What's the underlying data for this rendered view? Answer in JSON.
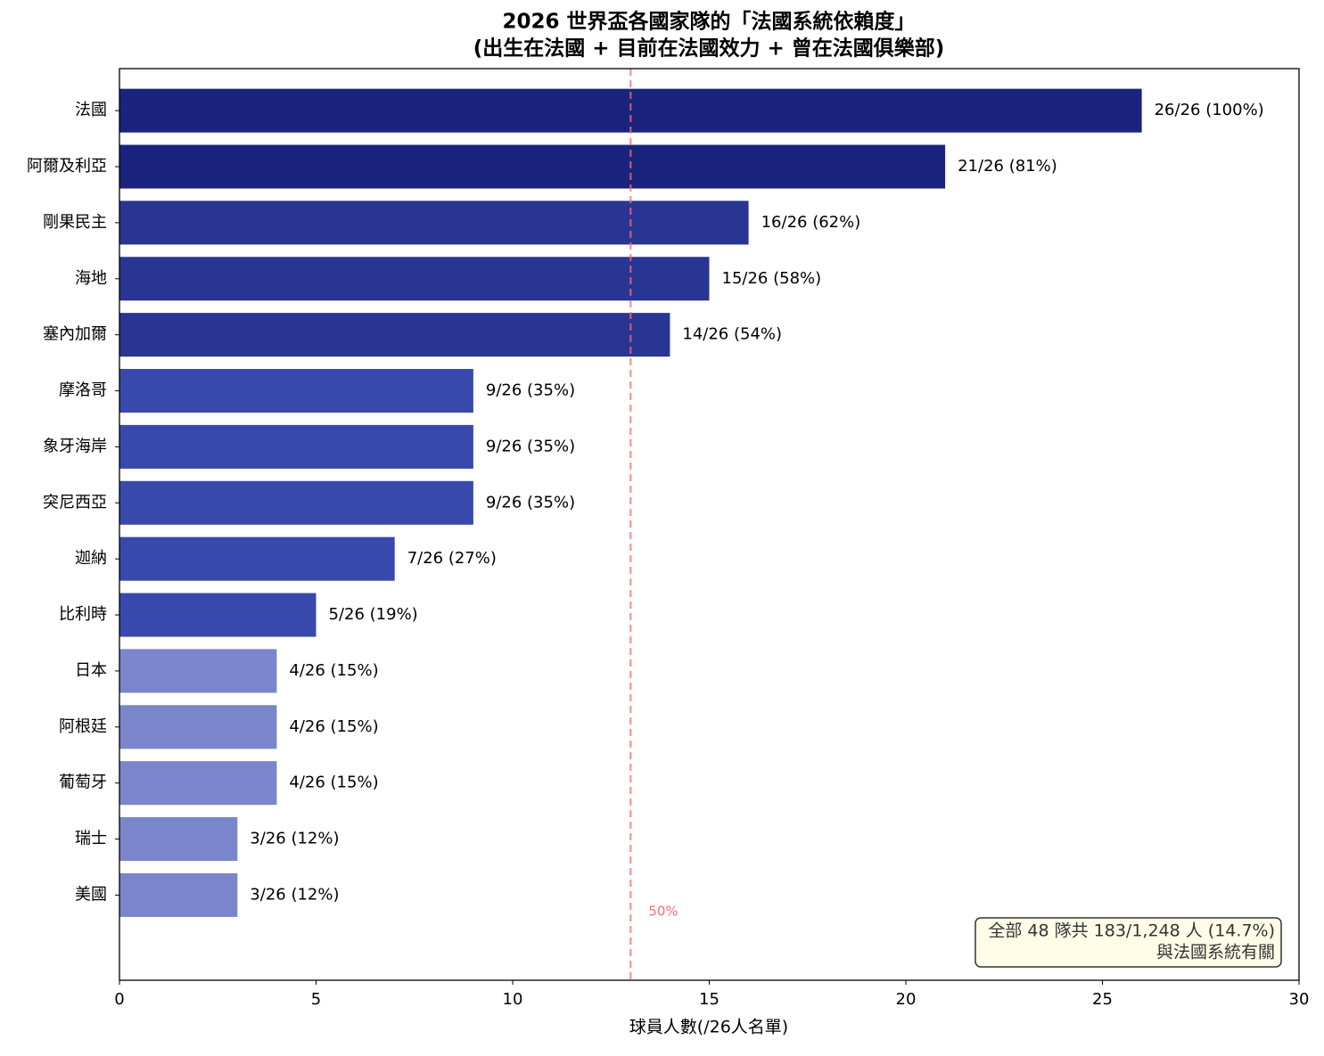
{
  "chart_data": {
    "type": "barh",
    "title": [
      "2026 世界盃各國家隊的「法國系統依賴度」",
      "(出生在法國 + 目前在法國效力 + 曾在法國俱樂部)"
    ],
    "x_label": "球員人數(/26人名單)",
    "categories": [
      "法國",
      "阿爾及利亞",
      "剛果民主",
      "海地",
      "塞內加爾",
      "摩洛哥",
      "象牙海岸",
      "突尼西亞",
      "迦納",
      "比利時",
      "日本",
      "阿根廷",
      "葡萄牙",
      "瑞士",
      "美國"
    ],
    "values": [
      26,
      21,
      16,
      15,
      14,
      9,
      9,
      9,
      7,
      5,
      4,
      4,
      4,
      3,
      3
    ],
    "value_labels": [
      "26/26 (100%)",
      "21/26 (81%)",
      "16/26 (62%)",
      "15/26 (58%)",
      "14/26 (54%)",
      "9/26 (35%)",
      "9/26 (35%)",
      "9/26 (35%)",
      "7/26 (27%)",
      "5/26 (19%)",
      "4/26 (15%)",
      "4/26 (15%)",
      "4/26 (15%)",
      "3/26 (12%)",
      "3/26 (12%)"
    ],
    "colors": [
      "#1a237e",
      "#1a237e",
      "#283593",
      "#283593",
      "#283593",
      "#3949ab",
      "#3949ab",
      "#3949ab",
      "#3949ab",
      "#3949ab",
      "#7986cb",
      "#7986cb",
      "#7986cb",
      "#7986cb",
      "#7986cb"
    ],
    "xlim": [
      0,
      30
    ],
    "xticks": [
      0,
      5,
      10,
      15,
      20,
      25,
      30
    ],
    "reference_line": {
      "value": 13,
      "label": "50%",
      "color": "#ff6b6b"
    },
    "annotation": [
      "全部 48 隊共 183/1,248 人 (14.7%)",
      "與法國系統有關"
    ]
  }
}
